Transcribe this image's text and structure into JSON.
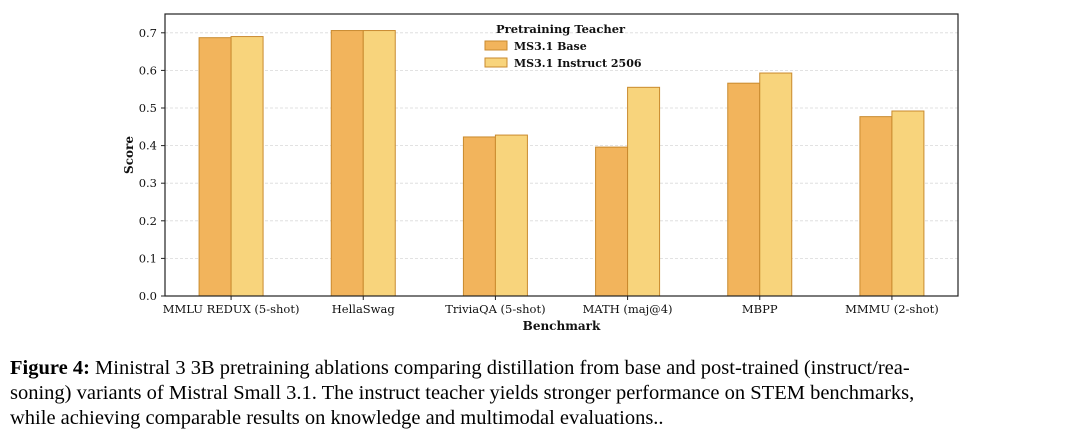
{
  "chart_data": {
    "type": "bar",
    "title": "",
    "xlabel": "Benchmark",
    "ylabel": "Score",
    "ylim": [
      0,
      0.75
    ],
    "yticks": [
      0.0,
      0.1,
      0.2,
      0.3,
      0.4,
      0.5,
      0.6,
      0.7
    ],
    "ytick_labels": [
      "0.0",
      "0.1",
      "0.2",
      "0.3",
      "0.4",
      "0.5",
      "0.6",
      "0.7"
    ],
    "grid": true,
    "legend": {
      "title": "Pretraining Teacher",
      "placement": "top-center"
    },
    "categories": [
      "MMLU REDUX (5-shot)",
      "HellaSwag",
      "TriviaQA (5-shot)",
      "MATH (maj@4)",
      "MBPP",
      "MMMU (2-shot)"
    ],
    "series": [
      {
        "name": "MS3.1 Base",
        "color": "#f2b45c",
        "values": [
          0.687,
          0.706,
          0.423,
          0.396,
          0.566,
          0.477
        ]
      },
      {
        "name": "MS3.1 Instruct 2506",
        "color": "#f8d47c",
        "values": [
          0.69,
          0.706,
          0.428,
          0.555,
          0.593,
          0.492
        ]
      }
    ]
  },
  "caption": {
    "label": "Figure 4:",
    "line1": "Ministral 3 3B pretraining ablations comparing distillation from base and post-trained (instruct/rea-",
    "line2": "soning) variants of Mistral Small 3.1. The instruct teacher yields stronger performance on STEM benchmarks,",
    "line3": "while achieving comparable results on knowledge and multimodal evaluations.."
  }
}
